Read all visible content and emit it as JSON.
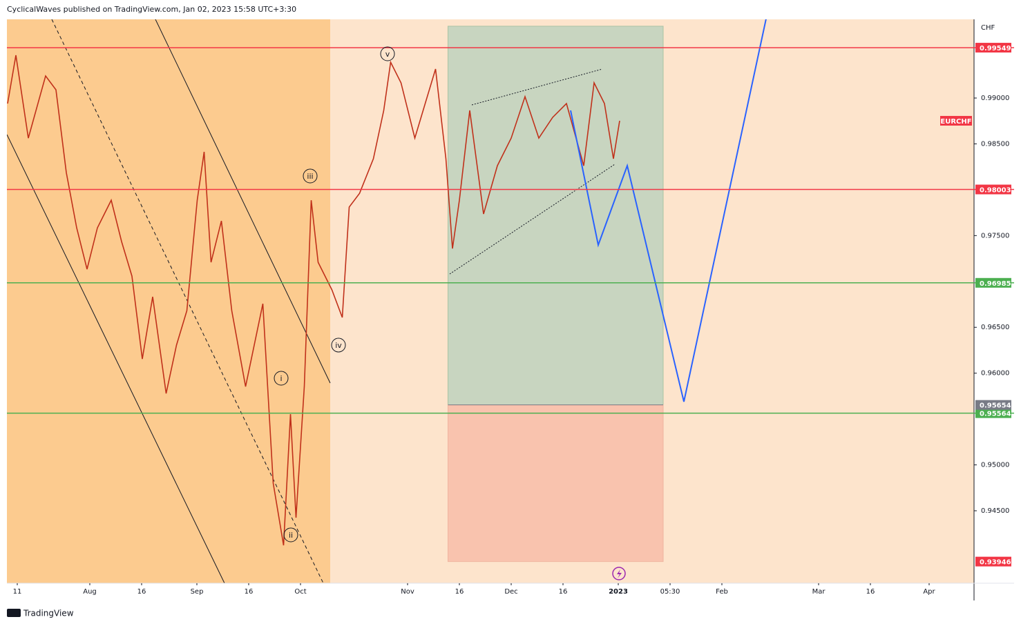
{
  "header": {
    "title": "CyclicalWaves published on TradingView.com, Jan 02, 2023 15:58 UTC+3:30"
  },
  "footer": {
    "brand": "TradingView"
  },
  "chart_data": {
    "type": "line",
    "symbol": "EURCHF",
    "currency": "CHF",
    "x": [
      -2.8,
      -0.4,
      3.2,
      8.2,
      11.2,
      14.2,
      17.2,
      20.2,
      23.2,
      27.2,
      30.2,
      33.2,
      36.2,
      39.2,
      43.1,
      46.1,
      49.1,
      52.1,
      54.1,
      56.1,
      59.1,
      62.1,
      66.1,
      71.1,
      74.1,
      77.1,
      79.1,
      80.7,
      83.1,
      85.1,
      87.1,
      91.1,
      94.1,
      96.1,
      99.1,
      103.1,
      106.1,
      108.1,
      111.1,
      115.1,
      118.1,
      121.1,
      124.1,
      126.0,
      128.0,
      131.0,
      135.0,
      139.0,
      143.0,
      147.0,
      151.0,
      155.0,
      159.0,
      164.0,
      167.0,
      170.0,
      172.6,
      174.4
    ],
    "series": [
      {
        "name": "EURCHF",
        "color": "#c0301a",
        "values": [
          0.9894,
          0.99467,
          0.98563,
          0.99241,
          0.9909,
          0.98187,
          0.97585,
          0.97134,
          0.97585,
          0.97886,
          0.97435,
          0.97058,
          0.96155,
          0.96833,
          0.95779,
          0.96306,
          0.96682,
          0.97886,
          0.98413,
          0.97209,
          0.9766,
          0.96682,
          0.95854,
          0.96757,
          0.948,
          0.94123,
          0.95553,
          0.94424,
          0.95854,
          0.97886,
          0.97209,
          0.96908,
          0.96607,
          0.97811,
          0.97961,
          0.98338,
          0.98865,
          0.99391,
          0.99166,
          0.98563,
          0.9894,
          0.99316,
          0.98338,
          0.97359,
          0.97886,
          0.98865,
          0.97736,
          0.98262,
          0.98563,
          0.99015,
          0.98563,
          0.98789,
          0.9894,
          0.98262,
          0.99166,
          0.9894,
          0.98338,
          0.98752
        ]
      }
    ],
    "projection": {
      "color": "#2962ff",
      "x": [
        160.2,
        168.2,
        176.6,
        193.0,
        216.9
      ],
      "values": [
        0.98865,
        0.97397,
        0.98262,
        0.95689,
        0.99881
      ]
    },
    "levels": [
      {
        "value": 0.99549,
        "color": "#f23645"
      },
      {
        "value": 0.98003,
        "color": "#f23645"
      },
      {
        "value": 0.96985,
        "color": "#4caf50"
      },
      {
        "value": 0.95564,
        "color": "#4caf50"
      }
    ],
    "position": {
      "x": [
        124.7,
        187
      ],
      "target": 0.99783,
      "entry": 0.95654,
      "stop": 0.93946,
      "entry_color": "#787b86",
      "stop_color": "#f23645"
    },
    "waves": [
      "i",
      "ii",
      "iii",
      "iv",
      "v"
    ],
    "xlim": [
      -3,
      277
    ],
    "ylim": [
      0.9371,
      0.99858
    ],
    "xticks": [
      {
        "value": 0,
        "label": "11"
      },
      {
        "value": 21,
        "label": "Aug"
      },
      {
        "value": 36,
        "label": "16"
      },
      {
        "value": 52,
        "label": "Sep"
      },
      {
        "value": 67,
        "label": "16"
      },
      {
        "value": 82,
        "label": "Oct"
      },
      {
        "value": 113,
        "label": "Nov"
      },
      {
        "value": 128,
        "label": "16"
      },
      {
        "value": 143,
        "label": "Dec"
      },
      {
        "value": 158,
        "label": "16"
      },
      {
        "value": 174,
        "label": "2023"
      },
      {
        "value": 189,
        "label": "05:30"
      },
      {
        "value": 204,
        "label": "Feb"
      },
      {
        "value": 232,
        "label": "Mar"
      },
      {
        "value": 247,
        "label": "16"
      },
      {
        "value": 264,
        "label": "Apr"
      }
    ],
    "yticks": [
      {
        "value": 0.99,
        "label": "0.99000"
      },
      {
        "value": 0.985,
        "label": "0.98500"
      },
      {
        "value": 0.975,
        "label": "0.97500"
      },
      {
        "value": 0.965,
        "label": "0.96500"
      },
      {
        "value": 0.96,
        "label": "0.96000"
      },
      {
        "value": 0.95,
        "label": "0.95000"
      },
      {
        "value": 0.945,
        "label": "0.94500"
      }
    ]
  }
}
